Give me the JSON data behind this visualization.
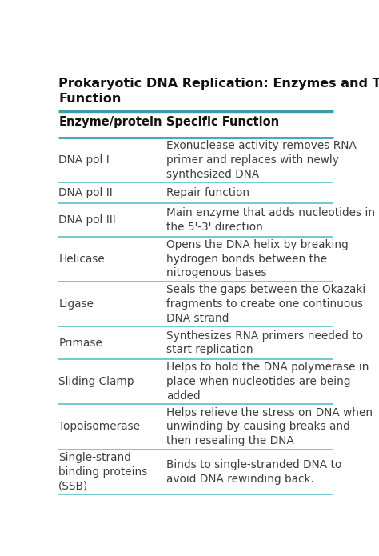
{
  "title_line1": "Prokaryotic DNA Replication: Enzymes and Their",
  "title_line2": "Function",
  "col1_header": "Enzyme/protein",
  "col2_header": "Specific Function",
  "rows": [
    {
      "enzyme": "DNA pol I",
      "function": "Exonuclease activity removes RNA\nprimer and replaces with newly\nsynthesized DNA"
    },
    {
      "enzyme": "DNA pol II",
      "function": "Repair function"
    },
    {
      "enzyme": "DNA pol III",
      "function": "Main enzyme that adds nucleotides in\nthe 5'-3' direction"
    },
    {
      "enzyme": "Helicase",
      "function": "Opens the DNA helix by breaking\nhydrogen bonds between the\nnitrogenous bases"
    },
    {
      "enzyme": "Ligase",
      "function": "Seals the gaps between the Okazaki\nfragments to create one continuous\nDNA strand"
    },
    {
      "enzyme": "Primase",
      "function": "Synthesizes RNA primers needed to\nstart replication"
    },
    {
      "enzyme": "Sliding Clamp",
      "function": "Helps to hold the DNA polymerase in\nplace when nucleotides are being\nadded"
    },
    {
      "enzyme": "Topoisomerase",
      "function": "Helps relieve the stress on DNA when\nunwinding by causing breaks and\nthen resealing the DNA"
    },
    {
      "enzyme": "Single-strand\nbinding proteins\n(SSB)",
      "function": "Binds to single-stranded DNA to\navoid DNA rewinding back."
    }
  ],
  "bg_color": "#ffffff",
  "header_line_color": "#3a9daa",
  "row_line_color": "#5bbfcc",
  "title_color": "#111111",
  "header_text_color": "#111111",
  "body_text_color": "#3d3d3d",
  "title_fontsize": 11.5,
  "header_fontsize": 10.5,
  "body_fontsize": 9.8
}
